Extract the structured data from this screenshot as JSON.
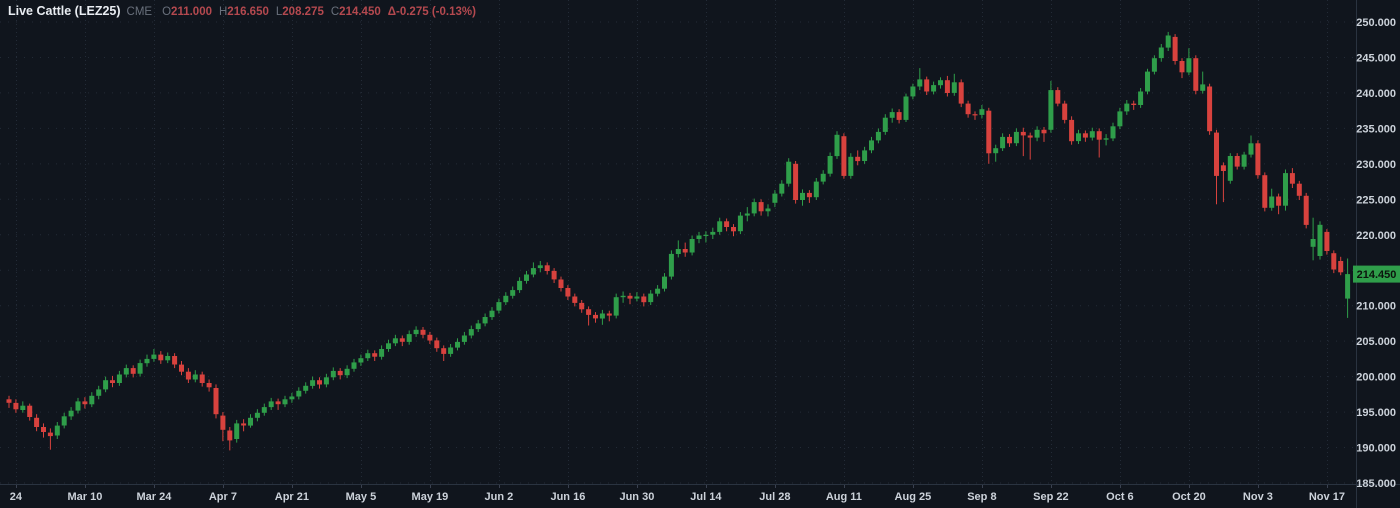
{
  "header": {
    "title": "Live Cattle (LEZ25)",
    "exchange": "CME",
    "fields": [
      {
        "label": "O",
        "value": "211.000"
      },
      {
        "label": "H",
        "value": "216.650"
      },
      {
        "label": "L",
        "value": "208.275"
      },
      {
        "label": "C",
        "value": "214.450"
      }
    ],
    "change": "Δ-0.275 (-0.13%)"
  },
  "colors": {
    "background": "#10151d",
    "up": "#2f9e4a",
    "down": "#d8423e",
    "grid": "#232b37",
    "axis_line": "#2a3340",
    "tick_stub": "#3a4150",
    "axis_text": "#ccd2da",
    "title_text": "#e9edf2",
    "muted_text": "#69707c",
    "value_down_text": "#b4494f",
    "badge_bg": "#2f9e4a",
    "badge_text": "#0c140d"
  },
  "chart_data": {
    "type": "candlestick",
    "title": "Live Cattle (LEZ25)",
    "exchange": "CME",
    "timeframe": "daily",
    "last_price": 214.45,
    "last_price_label": "214.450",
    "change": -0.275,
    "change_pct": "-0.13%",
    "ohlc_readout": {
      "open": 211.0,
      "high": 216.65,
      "low": 208.275,
      "close": 214.45
    },
    "price_axis": {
      "min": 185,
      "max": 250,
      "step": 5,
      "labels": [
        "250.000",
        "245.000",
        "240.000",
        "235.000",
        "230.000",
        "225.000",
        "220.000",
        "215.000",
        "210.000",
        "205.000",
        "200.000",
        "195.000",
        "190.000",
        "185.000"
      ]
    },
    "time_axis": {
      "tick_indices": [
        1,
        11,
        21,
        31,
        41,
        51,
        61,
        71,
        81,
        91,
        101,
        111,
        121,
        131,
        141,
        151,
        161,
        171,
        181,
        191
      ],
      "tick_labels": [
        "24",
        "Mar 10",
        "Mar 24",
        "Apr 7",
        "Apr 21",
        "May 5",
        "May 19",
        "Jun 2",
        "Jun 16",
        "Jun 30",
        "Jul 14",
        "Jul 28",
        "Aug 11",
        "Aug 25",
        "Sep 8",
        "Sep 22",
        "Oct 6",
        "Oct 20",
        "Nov 3",
        "Nov 17"
      ]
    },
    "candles": [
      [
        196.8,
        197.3,
        195.6,
        196.3
      ],
      [
        196.3,
        196.8,
        194.9,
        195.4
      ],
      [
        195.3,
        196.5,
        194.9,
        195.9
      ],
      [
        195.9,
        196.2,
        193.8,
        194.3
      ],
      [
        194.2,
        194.7,
        192.3,
        192.9
      ],
      [
        192.9,
        193.4,
        191.4,
        192.2
      ],
      [
        192.1,
        192.7,
        189.7,
        191.6
      ],
      [
        191.7,
        193.6,
        191.2,
        193.1
      ],
      [
        193.1,
        194.9,
        192.7,
        194.4
      ],
      [
        194.4,
        195.7,
        193.9,
        195.2
      ],
      [
        195.2,
        197.0,
        194.8,
        196.5
      ],
      [
        196.5,
        197.1,
        195.5,
        196.1
      ],
      [
        196.1,
        197.8,
        195.7,
        197.3
      ],
      [
        197.3,
        198.7,
        196.8,
        198.2
      ],
      [
        198.2,
        200.0,
        197.8,
        199.5
      ],
      [
        199.5,
        200.1,
        198.5,
        199.1
      ],
      [
        199.1,
        200.8,
        198.7,
        200.3
      ],
      [
        200.3,
        201.7,
        199.9,
        201.2
      ],
      [
        201.2,
        201.6,
        199.9,
        200.4
      ],
      [
        200.4,
        202.4,
        200.0,
        201.9
      ],
      [
        201.9,
        203.1,
        201.4,
        202.5
      ],
      [
        202.5,
        203.9,
        202.1,
        203.1
      ],
      [
        203.1,
        203.6,
        201.8,
        202.3
      ],
      [
        202.3,
        203.4,
        201.9,
        202.9
      ],
      [
        202.9,
        203.3,
        201.2,
        201.7
      ],
      [
        201.7,
        202.2,
        200.2,
        200.7
      ],
      [
        200.7,
        201.2,
        199.1,
        199.6
      ],
      [
        199.6,
        200.9,
        199.2,
        200.3
      ],
      [
        200.3,
        200.7,
        198.6,
        199.1
      ],
      [
        199.1,
        199.6,
        197.9,
        198.5
      ],
      [
        198.4,
        198.9,
        194.1,
        194.7
      ],
      [
        194.5,
        195.0,
        190.9,
        192.5
      ],
      [
        192.4,
        192.9,
        189.6,
        191.0
      ],
      [
        191.2,
        193.9,
        190.7,
        193.4
      ],
      [
        193.4,
        194.0,
        192.3,
        193.1
      ],
      [
        193.1,
        194.7,
        192.8,
        194.2
      ],
      [
        194.2,
        195.4,
        193.7,
        194.9
      ],
      [
        194.9,
        196.2,
        194.5,
        195.7
      ],
      [
        195.7,
        197.0,
        195.3,
        196.5
      ],
      [
        196.5,
        196.9,
        195.3,
        196.1
      ],
      [
        196.1,
        197.3,
        195.7,
        196.8
      ],
      [
        196.8,
        197.7,
        196.3,
        197.2
      ],
      [
        197.2,
        198.5,
        196.8,
        198.0
      ],
      [
        198.0,
        199.2,
        197.6,
        198.7
      ],
      [
        198.7,
        200.0,
        198.3,
        199.5
      ],
      [
        199.5,
        199.9,
        198.3,
        198.9
      ],
      [
        198.9,
        200.4,
        198.5,
        199.9
      ],
      [
        199.9,
        201.3,
        199.5,
        200.8
      ],
      [
        200.8,
        201.2,
        199.6,
        200.2
      ],
      [
        200.2,
        201.6,
        199.8,
        201.1
      ],
      [
        201.1,
        202.5,
        200.7,
        202.0
      ],
      [
        202.0,
        203.1,
        201.5,
        202.6
      ],
      [
        202.6,
        203.8,
        202.2,
        203.3
      ],
      [
        203.3,
        203.7,
        202.2,
        202.8
      ],
      [
        202.8,
        204.4,
        202.4,
        203.9
      ],
      [
        203.9,
        205.2,
        203.5,
        204.7
      ],
      [
        204.7,
        205.9,
        204.3,
        205.4
      ],
      [
        205.4,
        205.8,
        204.3,
        204.9
      ],
      [
        204.9,
        206.5,
        204.5,
        206.0
      ],
      [
        206.0,
        207.1,
        205.6,
        206.6
      ],
      [
        206.6,
        207.0,
        205.4,
        205.9
      ],
      [
        205.9,
        206.3,
        204.6,
        205.1
      ],
      [
        205.1,
        205.5,
        203.5,
        204.0
      ],
      [
        204.0,
        204.4,
        202.2,
        203.2
      ],
      [
        203.2,
        204.6,
        202.8,
        204.1
      ],
      [
        204.1,
        205.4,
        203.7,
        204.9
      ],
      [
        204.9,
        206.3,
        204.5,
        205.8
      ],
      [
        205.8,
        207.2,
        205.4,
        206.7
      ],
      [
        206.7,
        208.0,
        206.3,
        207.5
      ],
      [
        207.5,
        208.9,
        207.1,
        208.4
      ],
      [
        208.4,
        209.8,
        208.0,
        209.3
      ],
      [
        209.3,
        211.0,
        208.9,
        210.5
      ],
      [
        210.5,
        211.9,
        210.1,
        211.4
      ],
      [
        211.4,
        212.7,
        211.0,
        212.2
      ],
      [
        212.2,
        214.0,
        211.8,
        213.5
      ],
      [
        213.5,
        214.9,
        213.1,
        214.4
      ],
      [
        214.4,
        216.1,
        214.0,
        215.3
      ],
      [
        215.3,
        216.3,
        214.7,
        215.7
      ],
      [
        215.7,
        216.1,
        214.4,
        214.9
      ],
      [
        214.9,
        215.3,
        213.2,
        213.7
      ],
      [
        213.7,
        214.1,
        212.0,
        212.5
      ],
      [
        212.5,
        212.9,
        210.8,
        211.3
      ],
      [
        211.3,
        211.7,
        209.9,
        210.4
      ],
      [
        210.4,
        210.8,
        209.0,
        209.5
      ],
      [
        209.5,
        209.9,
        207.2,
        208.7
      ],
      [
        208.7,
        209.1,
        207.6,
        208.2
      ],
      [
        208.2,
        209.4,
        207.3,
        208.9
      ],
      [
        208.9,
        209.3,
        207.8,
        208.6
      ],
      [
        208.6,
        211.7,
        208.2,
        211.2
      ],
      [
        211.2,
        212.0,
        210.4,
        211.4
      ],
      [
        211.4,
        211.8,
        210.2,
        211.0
      ],
      [
        211.0,
        211.9,
        210.6,
        211.3
      ],
      [
        211.3,
        211.7,
        209.9,
        210.5
      ],
      [
        210.5,
        212.2,
        210.1,
        211.7
      ],
      [
        211.7,
        212.9,
        211.3,
        212.4
      ],
      [
        212.4,
        214.6,
        212.0,
        214.1
      ],
      [
        214.1,
        217.8,
        213.7,
        217.3
      ],
      [
        217.3,
        219.2,
        216.8,
        218.0
      ],
      [
        218.0,
        218.9,
        216.9,
        217.5
      ],
      [
        217.5,
        219.9,
        217.1,
        219.4
      ],
      [
        219.4,
        220.4,
        218.8,
        219.9
      ],
      [
        219.9,
        220.5,
        218.9,
        220.0
      ],
      [
        220.0,
        221.0,
        219.4,
        220.4
      ],
      [
        220.4,
        222.4,
        220.0,
        221.9
      ],
      [
        221.9,
        222.3,
        220.5,
        221.1
      ],
      [
        221.1,
        221.5,
        219.8,
        220.5
      ],
      [
        220.5,
        223.2,
        220.1,
        222.7
      ],
      [
        222.7,
        223.9,
        221.9,
        223.0
      ],
      [
        223.0,
        225.1,
        222.6,
        224.6
      ],
      [
        224.6,
        225.0,
        222.7,
        223.3
      ],
      [
        223.3,
        224.3,
        222.6,
        223.7
      ],
      [
        224.5,
        226.3,
        223.9,
        225.8
      ],
      [
        225.8,
        227.7,
        225.4,
        227.2
      ],
      [
        227.2,
        230.8,
        226.8,
        230.3
      ],
      [
        230.0,
        230.4,
        224.4,
        224.9
      ],
      [
        224.9,
        226.4,
        224.1,
        225.9
      ],
      [
        225.9,
        226.3,
        224.5,
        225.3
      ],
      [
        225.3,
        228.0,
        224.9,
        227.5
      ],
      [
        227.5,
        229.1,
        227.1,
        228.6
      ],
      [
        228.6,
        231.6,
        228.2,
        231.1
      ],
      [
        231.1,
        234.6,
        230.7,
        234.1
      ],
      [
        233.9,
        234.3,
        227.9,
        228.3
      ],
      [
        228.3,
        231.5,
        227.9,
        231.0
      ],
      [
        231.0,
        231.9,
        229.8,
        230.4
      ],
      [
        230.4,
        232.4,
        230.0,
        231.9
      ],
      [
        231.9,
        233.8,
        231.5,
        233.3
      ],
      [
        233.3,
        235.0,
        232.9,
        234.5
      ],
      [
        234.5,
        237.0,
        234.1,
        236.5
      ],
      [
        236.5,
        237.8,
        235.8,
        237.3
      ],
      [
        237.3,
        237.7,
        235.7,
        236.2
      ],
      [
        236.2,
        239.9,
        235.9,
        239.5
      ],
      [
        239.5,
        241.3,
        239.1,
        240.9
      ],
      [
        240.9,
        243.5,
        240.4,
        241.9
      ],
      [
        241.9,
        242.3,
        239.7,
        240.2
      ],
      [
        240.2,
        241.6,
        239.8,
        241.1
      ],
      [
        241.1,
        242.2,
        240.6,
        241.8
      ],
      [
        241.8,
        242.4,
        239.5,
        240.0
      ],
      [
        240.0,
        242.7,
        239.6,
        241.5
      ],
      [
        241.5,
        241.9,
        238.0,
        238.5
      ],
      [
        238.5,
        238.9,
        236.5,
        237.0
      ],
      [
        237.0,
        237.4,
        236.2,
        236.9
      ],
      [
        236.9,
        238.3,
        236.4,
        237.7
      ],
      [
        237.5,
        237.9,
        230.0,
        231.5
      ],
      [
        231.5,
        232.7,
        230.3,
        232.2
      ],
      [
        232.2,
        234.3,
        231.8,
        233.8
      ],
      [
        233.8,
        234.2,
        232.4,
        232.9
      ],
      [
        232.9,
        235.0,
        232.5,
        234.5
      ],
      [
        234.5,
        235.1,
        231.1,
        234.0
      ],
      [
        234.0,
        234.4,
        230.6,
        233.7
      ],
      [
        233.7,
        235.3,
        233.2,
        234.8
      ],
      [
        234.8,
        235.2,
        233.1,
        234.3
      ],
      [
        234.8,
        241.7,
        234.4,
        240.4
      ],
      [
        240.4,
        240.8,
        238.1,
        238.5
      ],
      [
        238.5,
        238.9,
        235.7,
        236.2
      ],
      [
        236.2,
        236.7,
        232.7,
        233.2
      ],
      [
        233.2,
        234.8,
        232.8,
        234.3
      ],
      [
        234.3,
        234.7,
        233.1,
        233.7
      ],
      [
        233.7,
        235.1,
        233.3,
        234.6
      ],
      [
        234.6,
        235.0,
        230.9,
        233.4
      ],
      [
        233.4,
        234.2,
        232.6,
        233.6
      ],
      [
        233.6,
        235.8,
        233.2,
        235.3
      ],
      [
        235.3,
        237.9,
        234.9,
        237.4
      ],
      [
        237.4,
        239.0,
        236.9,
        238.5
      ],
      [
        238.5,
        238.9,
        237.6,
        238.3
      ],
      [
        238.3,
        240.7,
        237.9,
        240.2
      ],
      [
        240.2,
        243.4,
        239.8,
        243.0
      ],
      [
        243.0,
        245.3,
        242.6,
        244.9
      ],
      [
        244.9,
        246.9,
        244.4,
        246.4
      ],
      [
        246.4,
        248.6,
        245.9,
        248.1
      ],
      [
        247.9,
        248.3,
        244.0,
        244.5
      ],
      [
        244.5,
        244.9,
        242.1,
        242.9
      ],
      [
        242.9,
        246.3,
        242.5,
        244.9
      ],
      [
        244.9,
        245.3,
        239.8,
        240.3
      ],
      [
        240.3,
        243.0,
        239.9,
        241.2
      ],
      [
        240.9,
        241.3,
        234.1,
        234.6
      ],
      [
        234.4,
        234.8,
        224.3,
        228.3
      ],
      [
        229.8,
        230.2,
        224.6,
        229.0
      ],
      [
        227.6,
        231.5,
        227.2,
        231.1
      ],
      [
        231.1,
        231.5,
        229.2,
        229.6
      ],
      [
        229.6,
        231.7,
        229.2,
        231.3
      ],
      [
        231.3,
        234.0,
        230.9,
        232.9
      ],
      [
        232.9,
        233.3,
        227.9,
        228.4
      ],
      [
        228.4,
        228.8,
        223.3,
        223.8
      ],
      [
        223.8,
        226.5,
        223.4,
        225.4
      ],
      [
        225.4,
        225.8,
        222.9,
        224.1
      ],
      [
        224.1,
        229.2,
        223.4,
        228.7
      ],
      [
        228.7,
        229.4,
        226.6,
        227.2
      ],
      [
        227.2,
        227.6,
        224.9,
        225.5
      ],
      [
        225.5,
        225.9,
        220.9,
        221.4
      ],
      [
        218.3,
        222.4,
        216.4,
        219.4
      ],
      [
        217.0,
        221.9,
        216.5,
        221.4
      ],
      [
        220.4,
        220.8,
        217.2,
        217.7
      ],
      [
        217.4,
        217.8,
        214.6,
        215.1
      ],
      [
        216.3,
        216.9,
        214.3,
        214.7
      ],
      [
        211.0,
        216.65,
        208.275,
        214.45
      ]
    ]
  }
}
